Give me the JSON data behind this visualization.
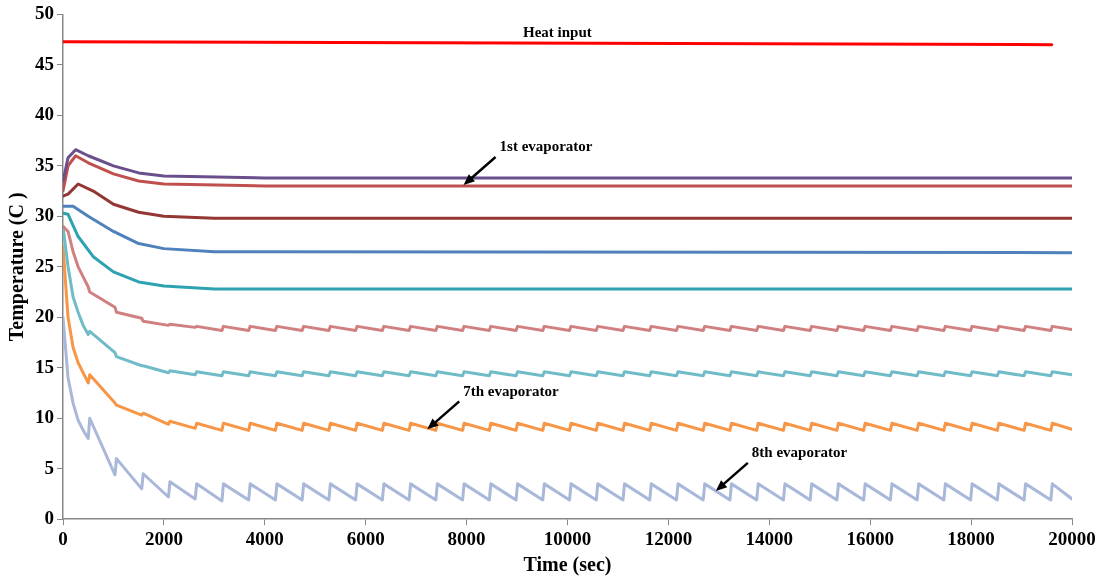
{
  "chart_data": {
    "type": "line",
    "xlabel": "Time (sec)",
    "ylabel": "Temperature (C )",
    "xlim": [
      0,
      20000
    ],
    "xticks": [
      0,
      2000,
      4000,
      6000,
      8000,
      10000,
      12000,
      14000,
      16000,
      18000,
      20000
    ],
    "ylim": [
      0,
      50
    ],
    "yticks": [
      0,
      5,
      10,
      15,
      20,
      25,
      30,
      35,
      40,
      45,
      50
    ],
    "grid": false,
    "legend": false,
    "marker": "none",
    "line_style": "solid",
    "x": [
      0,
      100,
      200,
      300,
      400,
      500,
      530,
      1030,
      1060,
      1560,
      1590,
      2090,
      2120,
      2620,
      2650,
      3150,
      3180,
      3680,
      3710,
      4210,
      4240,
      4740,
      4770,
      5270,
      5300,
      5800,
      5830,
      6330,
      6360,
      6860,
      6890,
      7390,
      7420,
      7920,
      7950,
      8450,
      8480,
      8980,
      9010,
      9510,
      9540,
      10040,
      10070,
      10570,
      10600,
      11100,
      11130,
      11630,
      11660,
      12160,
      12190,
      12690,
      12720,
      13220,
      13250,
      13750,
      13780,
      14280,
      14310,
      14810,
      14840,
      15340,
      15370,
      15870,
      15900,
      16400,
      16430,
      16930,
      16960,
      17460,
      17490,
      17990,
      18020,
      18520,
      18550,
      19050,
      19080,
      19580,
      19610,
      20000
    ],
    "series": [
      {
        "name": "Heat input",
        "color": "#ff0000",
        "x": [
          0,
          19600
        ],
        "values": [
          47.3,
          47.0
        ]
      },
      {
        "color": "#6a4f8c",
        "x": [
          0,
          100,
          250,
          500,
          1000,
          1500,
          2000,
          4000,
          20000
        ],
        "values": [
          33.5,
          35.8,
          36.6,
          36.0,
          35.0,
          34.3,
          34.0,
          33.8,
          33.8
        ]
      },
      {
        "color": "#c0504d",
        "x": [
          0,
          100,
          250,
          500,
          1000,
          1500,
          2000,
          4000,
          20000
        ],
        "values": [
          32.5,
          35.0,
          36.0,
          35.3,
          34.2,
          33.5,
          33.2,
          33.0,
          33.0
        ]
      },
      {
        "color": "#943634",
        "x": [
          0,
          100,
          300,
          600,
          1000,
          1500,
          2000,
          3000,
          20000
        ],
        "values": [
          32.0,
          32.2,
          33.2,
          32.5,
          31.2,
          30.4,
          30.0,
          29.8,
          29.8
        ]
      },
      {
        "color": "#4f81bd",
        "x": [
          0,
          200,
          500,
          1000,
          1500,
          2000,
          3000,
          20000
        ],
        "values": [
          31.0,
          31.0,
          30.0,
          28.5,
          27.3,
          26.8,
          26.5,
          26.4
        ]
      },
      {
        "color": "#2ea2b0",
        "x": [
          0,
          100,
          300,
          600,
          1000,
          1500,
          2000,
          3000,
          20000
        ],
        "values": [
          30.3,
          30.2,
          28.0,
          26.0,
          24.5,
          23.5,
          23.1,
          22.8,
          22.8
        ]
      },
      {
        "color": "#d08080",
        "values": [
          29,
          28.5,
          26.5,
          25,
          24,
          23,
          22.5,
          21.0,
          20.5,
          19.9,
          19.6,
          19.2,
          19.3,
          19.0,
          19.1,
          18.7,
          19.1,
          18.7,
          19.1,
          18.7,
          19.1,
          18.7,
          19.1,
          18.7,
          19.1,
          18.7,
          19.1,
          18.7,
          19.1,
          18.7,
          19.1,
          18.7,
          19.1,
          18.7,
          19.1,
          18.7,
          19.1,
          18.7,
          19.1,
          18.7,
          19.1,
          18.7,
          19.1,
          18.7,
          19.1,
          18.7,
          19.1,
          18.7,
          19.1,
          18.7,
          19.1,
          18.7,
          19.1,
          18.7,
          19.1,
          18.7,
          19.1,
          18.7,
          19.1,
          18.7,
          19.1,
          18.7,
          19.1,
          18.7,
          19.1,
          18.7,
          19.1,
          18.7,
          19.1,
          18.7,
          19.1,
          18.7,
          19.1,
          18.7,
          19.1,
          18.7,
          19.1,
          18.7,
          19.1,
          18.8
        ]
      },
      {
        "color": "#6fbcc8",
        "values": [
          29,
          25,
          22,
          20.5,
          19.2,
          18.3,
          18.6,
          16.5,
          16.1,
          15.2,
          15.2,
          14.5,
          14.7,
          14.3,
          14.6,
          14.2,
          14.6,
          14.2,
          14.6,
          14.2,
          14.6,
          14.2,
          14.6,
          14.2,
          14.6,
          14.2,
          14.6,
          14.2,
          14.6,
          14.2,
          14.6,
          14.2,
          14.6,
          14.2,
          14.6,
          14.2,
          14.6,
          14.2,
          14.6,
          14.2,
          14.6,
          14.2,
          14.6,
          14.2,
          14.6,
          14.2,
          14.6,
          14.2,
          14.6,
          14.2,
          14.6,
          14.2,
          14.6,
          14.2,
          14.6,
          14.2,
          14.6,
          14.2,
          14.6,
          14.2,
          14.6,
          14.2,
          14.6,
          14.2,
          14.6,
          14.2,
          14.6,
          14.2,
          14.6,
          14.2,
          14.6,
          14.2,
          14.6,
          14.2,
          14.6,
          14.2,
          14.6,
          14.2,
          14.6,
          14.3
        ]
      },
      {
        "color": "#f79646",
        "values": [
          27,
          20,
          17,
          15.5,
          14.5,
          13.5,
          14.3,
          11.5,
          11.3,
          10.3,
          10.5,
          9.4,
          9.7,
          9.0,
          9.5,
          8.8,
          9.5,
          8.8,
          9.5,
          8.8,
          9.5,
          8.8,
          9.5,
          8.8,
          9.5,
          8.8,
          9.5,
          8.8,
          9.5,
          8.8,
          9.5,
          8.8,
          9.5,
          8.8,
          9.5,
          8.8,
          9.5,
          8.8,
          9.5,
          8.8,
          9.5,
          8.8,
          9.5,
          8.8,
          9.5,
          8.8,
          9.5,
          8.8,
          9.5,
          8.8,
          9.5,
          8.8,
          9.5,
          8.8,
          9.5,
          8.8,
          9.5,
          8.8,
          9.5,
          8.8,
          9.5,
          8.8,
          9.5,
          8.8,
          9.5,
          8.8,
          9.5,
          8.8,
          9.5,
          8.8,
          9.5,
          8.8,
          9.5,
          8.8,
          9.5,
          8.8,
          9.5,
          8.8,
          9.5,
          8.9
        ]
      },
      {
        "color": "#a9b8d8",
        "values": [
          20,
          14,
          11.5,
          9.8,
          8.8,
          8.0,
          10,
          4.4,
          6,
          3.0,
          4.5,
          2.2,
          3.7,
          2.0,
          3.5,
          1.8,
          3.5,
          1.9,
          3.5,
          1.9,
          3.5,
          1.9,
          3.5,
          1.9,
          3.5,
          1.9,
          3.5,
          1.9,
          3.5,
          1.9,
          3.5,
          1.9,
          3.5,
          1.9,
          3.5,
          1.9,
          3.5,
          1.9,
          3.5,
          1.9,
          3.5,
          1.9,
          3.5,
          1.9,
          3.5,
          1.9,
          3.5,
          1.9,
          3.5,
          1.9,
          3.5,
          1.9,
          3.5,
          1.9,
          3.5,
          1.9,
          3.5,
          1.9,
          3.5,
          1.9,
          3.5,
          1.9,
          3.5,
          1.9,
          3.5,
          1.9,
          3.5,
          1.9,
          3.5,
          1.9,
          3.5,
          1.9,
          3.5,
          1.9,
          3.5,
          1.9,
          3.5,
          1.9,
          3.5,
          2.0
        ]
      }
    ],
    "annotations": [
      {
        "text": "1st evaporator",
        "x": 7940,
        "y": 33.1
      },
      {
        "text": "7th evaporator",
        "x": 7220,
        "y": 8.9
      },
      {
        "text": "8th evaporator",
        "x": 12940,
        "y": 2.8
      }
    ]
  }
}
